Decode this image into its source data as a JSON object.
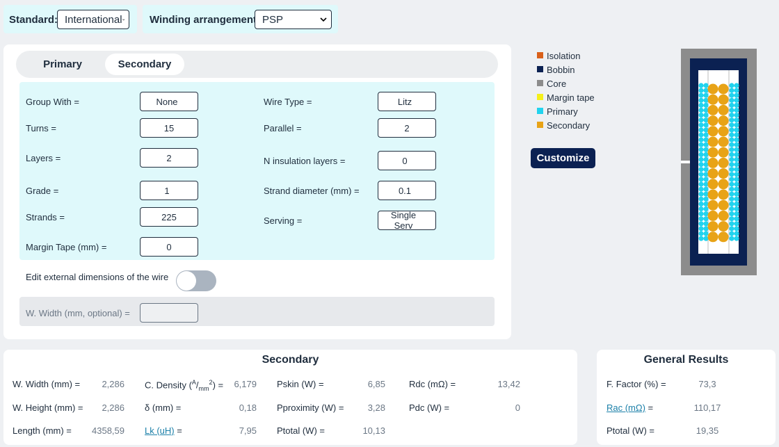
{
  "toolbar": {
    "standard_label": "Standard:",
    "standard_value": "International",
    "winding_label": "Winding arrangement:",
    "winding_value": "PSP"
  },
  "tabs": {
    "items": [
      "Primary",
      "Secondary"
    ],
    "active": 1
  },
  "form": {
    "left": [
      {
        "label": "Group With =",
        "value": "None",
        "control": "select"
      },
      {
        "label": "Turns =",
        "value": "15",
        "control": "input"
      },
      {
        "label": "Layers =",
        "value": "2",
        "control": "input"
      },
      {
        "label": "Grade =",
        "value": "1",
        "control": "select"
      },
      {
        "label": "Strands =",
        "value": "225",
        "control": "input"
      },
      {
        "label": "Margin Tape (mm) =",
        "value": "0",
        "control": "input"
      }
    ],
    "right": [
      {
        "label": "Wire Type =",
        "value": "Litz",
        "control": "select"
      },
      {
        "label": "Parallel =",
        "value": "2",
        "control": "input"
      },
      {
        "label": "N insulation layers =",
        "value": "0",
        "control": "select"
      },
      {
        "label": "Strand diameter (mm) =",
        "value": "0.1",
        "control": "select"
      },
      {
        "label": "Serving =",
        "value": "Single Serv",
        "control": "select"
      }
    ],
    "toggle_label": "Edit external dimensions of the wire",
    "optional_label": "W. Width (mm, optional) ="
  },
  "legend": [
    {
      "name": "Isolation",
      "color": "#d9601a"
    },
    {
      "name": "Bobbin",
      "color": "#0b2152"
    },
    {
      "name": "Core",
      "color": "#8c8c8c"
    },
    {
      "name": "Margin tape",
      "color": "#f5f01a"
    },
    {
      "name": "Primary",
      "color": "#22d3ee"
    },
    {
      "name": "Secondary",
      "color": "#e8a317"
    }
  ],
  "button": "Customize",
  "results": {
    "title": "Secondary",
    "columns": [
      [
        {
          "label": "W. Width (mm) =",
          "value": "2,286"
        },
        {
          "label": "W. Height (mm) =",
          "value": "2,286"
        },
        {
          "label": "Length (mm) =",
          "value": "4358,59"
        }
      ],
      [
        {
          "label_parts": [
            "C. Density (",
            "A",
            "/",
            "mm",
            "2",
            ") ="
          ],
          "value": "6,179"
        },
        {
          "label": "δ (mm) =",
          "value": "0,18"
        },
        {
          "link": "Lk (uH)",
          "label": " =",
          "value": "7,95"
        }
      ],
      [
        {
          "label": "Pskin (W) =",
          "value": "6,85"
        },
        {
          "label": "Pproximity (W) =",
          "value": "3,28"
        },
        {
          "label": "Ptotal (W) =",
          "value": "10,13"
        }
      ],
      [
        {
          "label": "Rdc (mΩ) =",
          "value": "13,42"
        },
        {
          "label": "Pdc (W) =",
          "value": "0"
        }
      ]
    ]
  },
  "general": {
    "title": "General Results",
    "rows": [
      {
        "label": "F. Factor (%) =",
        "value": "73,3"
      },
      {
        "link": "Rac (mΩ)",
        "label": " =",
        "value": "110,17"
      },
      {
        "label": "Ptotal (W) =",
        "value": "19,35"
      }
    ]
  }
}
